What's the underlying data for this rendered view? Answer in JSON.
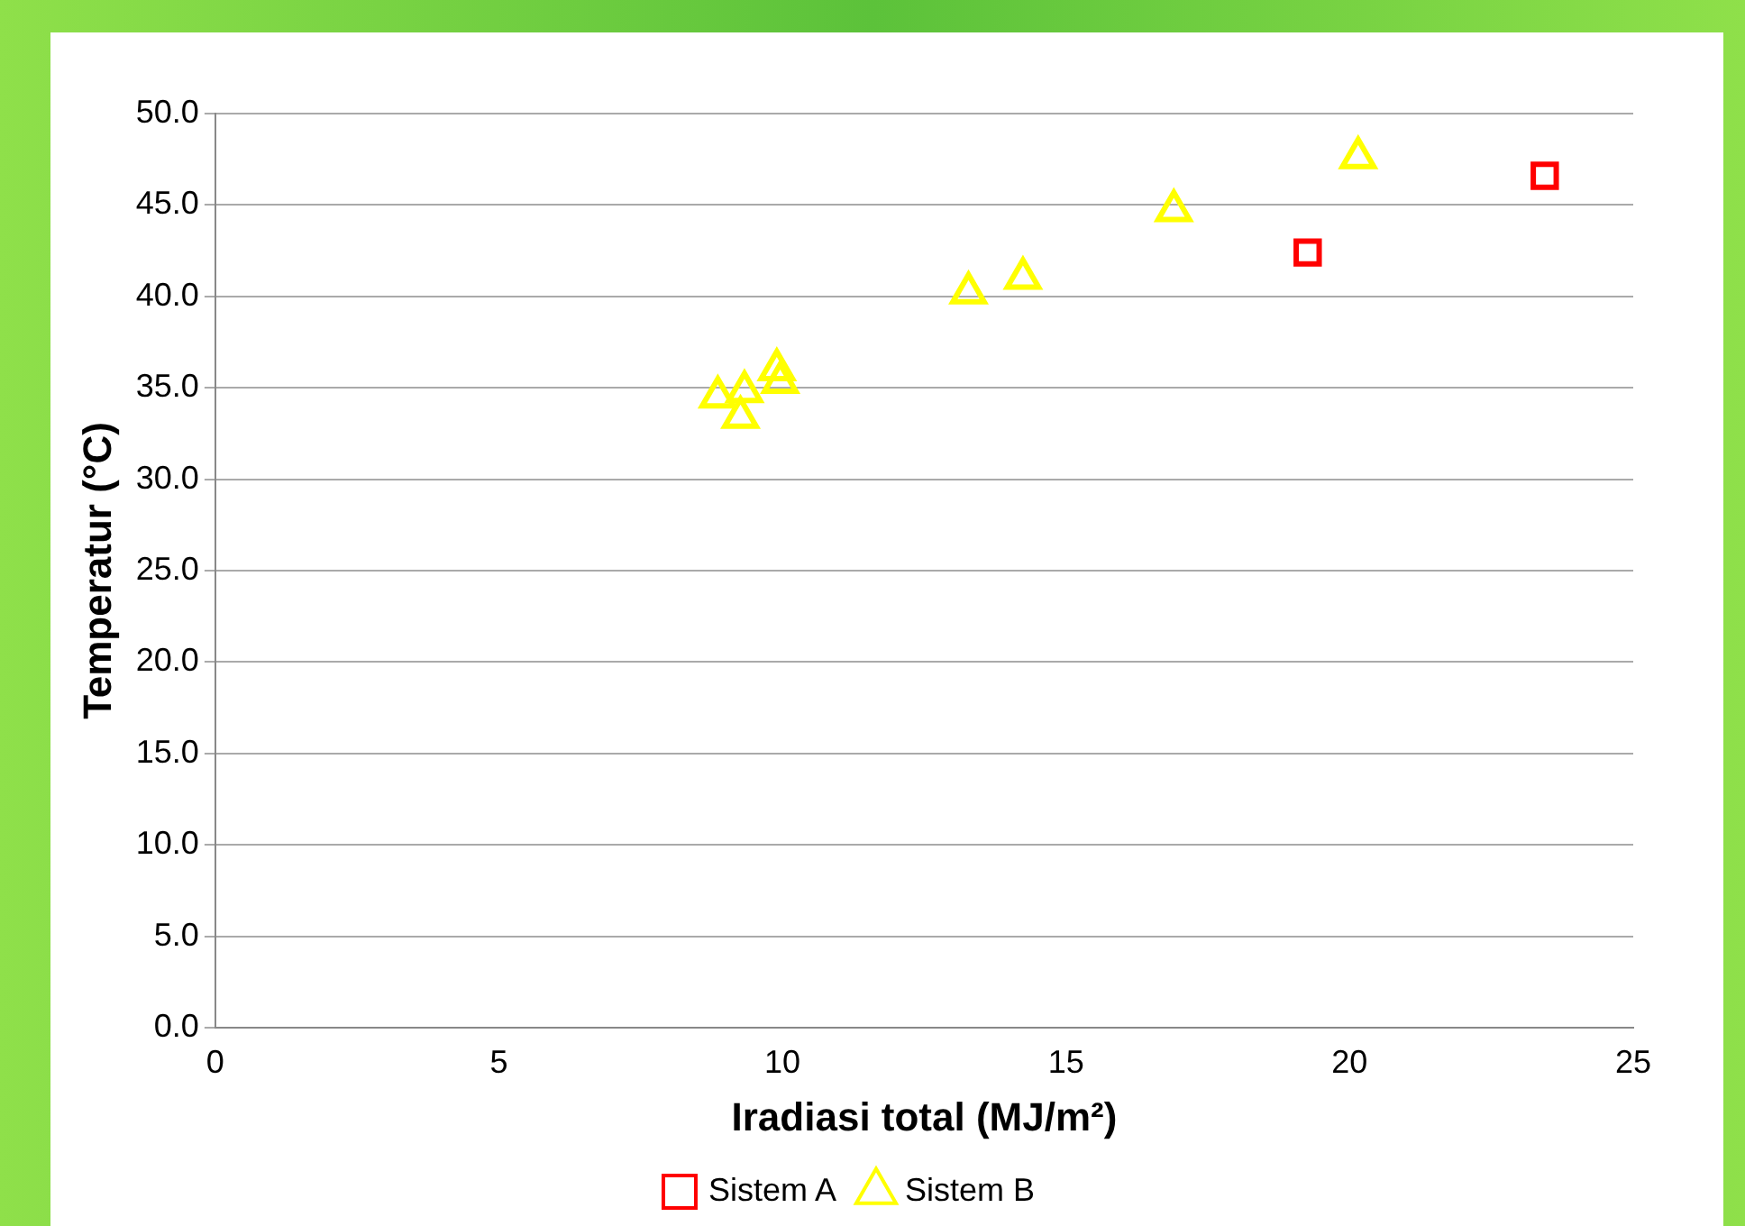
{
  "chart_data": {
    "type": "scatter",
    "xlabel": "Iradiasi total (MJ/m²)",
    "ylabel": "Temperatur (°C)",
    "series": [
      {
        "name": "Sistem A",
        "color": "#ff0000",
        "marker": "square",
        "x": [
          19.26,
          23.44
        ],
        "values": [
          42.4,
          46.6
        ]
      },
      {
        "name": "Sistem B",
        "color": "#ffff00",
        "marker": "triangle",
        "x": [
          20.15,
          16.9,
          14.24,
          13.28,
          8.86,
          9.33,
          9.26,
          9.9,
          9.96
        ],
        "values": [
          47.6,
          44.7,
          41.0,
          40.2,
          34.5,
          34.8,
          33.4,
          36.0,
          35.3
        ]
      }
    ],
    "xlim": [
      0,
      25
    ],
    "xticks": [
      0,
      5,
      10,
      15,
      20,
      25
    ],
    "ylim": [
      0,
      50
    ],
    "yticks": [
      {
        "value": 0,
        "label": "0.0"
      },
      {
        "value": 5,
        "label": "5.0"
      },
      {
        "value": 10,
        "label": "10.0"
      },
      {
        "value": 15,
        "label": "15.0"
      },
      {
        "value": 20,
        "label": "20.0"
      },
      {
        "value": 25,
        "label": "25.0"
      },
      {
        "value": 30,
        "label": "30.0"
      },
      {
        "value": 35,
        "label": "35.0"
      },
      {
        "value": 40,
        "label": "40.0"
      },
      {
        "value": 45,
        "label": "45.0"
      },
      {
        "value": 50,
        "label": "50.0"
      }
    ],
    "grid": "y",
    "legend": "bottom"
  }
}
